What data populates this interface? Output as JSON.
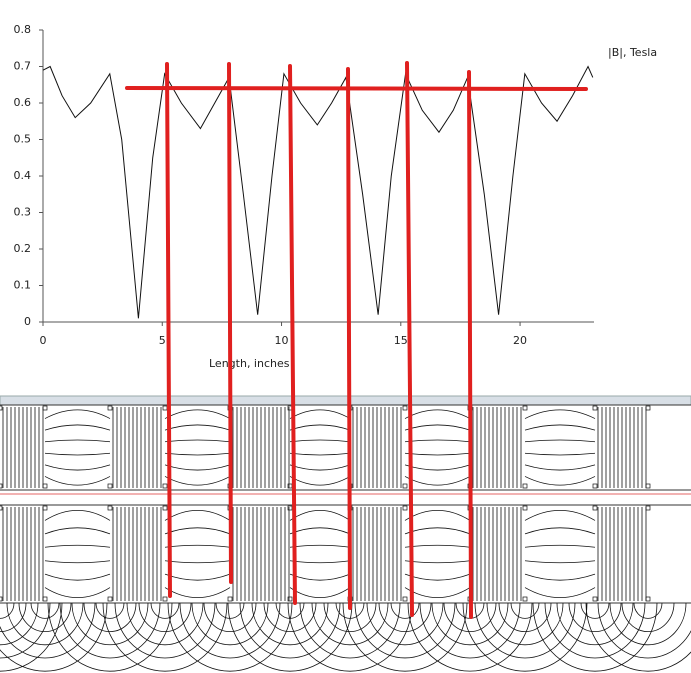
{
  "chart_data": {
    "type": "line",
    "x_label": "Length, inches",
    "x": [
      0,
      0.3,
      0.8,
      1.35,
      2.0,
      2.8,
      3.3,
      4.0,
      4.6,
      5.1,
      5.8,
      6.6,
      7.2,
      7.8,
      8.4,
      9.0,
      9.6,
      10.1,
      10.8,
      11.5,
      12.1,
      12.7,
      13.4,
      14.05,
      14.6,
      15.2,
      15.9,
      16.6,
      17.2,
      17.8,
      18.5,
      19.1,
      19.7,
      20.2,
      20.9,
      21.55,
      22.2,
      22.85,
      23.05
    ],
    "series": [
      {
        "name": "|B|, Tesla",
        "color": "#111111",
        "values": [
          0.69,
          0.7,
          0.62,
          0.56,
          0.6,
          0.68,
          0.5,
          0.01,
          0.45,
          0.68,
          0.6,
          0.53,
          0.6,
          0.67,
          0.35,
          0.02,
          0.4,
          0.68,
          0.6,
          0.54,
          0.6,
          0.67,
          0.35,
          0.02,
          0.4,
          0.68,
          0.58,
          0.52,
          0.58,
          0.67,
          0.35,
          0.02,
          0.4,
          0.68,
          0.6,
          0.55,
          0.62,
          0.7,
          0.67
        ]
      }
    ],
    "xlim": [
      0,
      23.1
    ],
    "xticks": [
      0,
      5,
      10,
      15,
      20
    ],
    "ylim": [
      0,
      0.8
    ],
    "yticks": [
      0,
      0.1,
      0.2,
      0.3,
      0.4,
      0.5,
      0.6,
      0.7,
      0.8
    ]
  }
}
